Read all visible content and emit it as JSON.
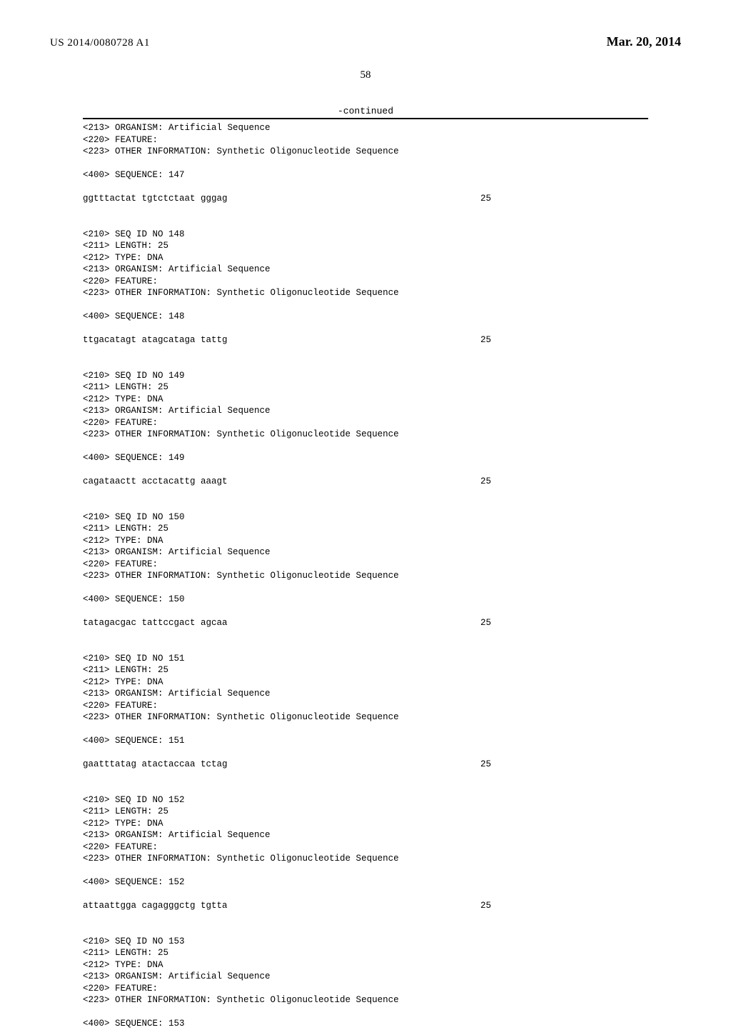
{
  "header": {
    "pub_number": "US 2014/0080728 A1",
    "pub_date": "Mar. 20, 2014"
  },
  "page_number": "58",
  "continued_label": "-continued",
  "top_lines": [
    "<213> ORGANISM: Artificial Sequence",
    "<220> FEATURE:",
    "<223> OTHER INFORMATION: Synthetic Oligonucleotide Sequence",
    "",
    "<400> SEQUENCE: 147",
    ""
  ],
  "top_seq": {
    "text": "ggtttactat tgtctctaat gggag",
    "len": "25"
  },
  "entries": [
    {
      "meta": [
        "<210> SEQ ID NO 148",
        "<211> LENGTH: 25",
        "<212> TYPE: DNA",
        "<213> ORGANISM: Artificial Sequence",
        "<220> FEATURE:",
        "<223> OTHER INFORMATION: Synthetic Oligonucleotide Sequence",
        "",
        "<400> SEQUENCE: 148",
        ""
      ],
      "seq": {
        "text": "ttgacatagt atagcataga tattg",
        "len": "25"
      }
    },
    {
      "meta": [
        "<210> SEQ ID NO 149",
        "<211> LENGTH: 25",
        "<212> TYPE: DNA",
        "<213> ORGANISM: Artificial Sequence",
        "<220> FEATURE:",
        "<223> OTHER INFORMATION: Synthetic Oligonucleotide Sequence",
        "",
        "<400> SEQUENCE: 149",
        ""
      ],
      "seq": {
        "text": "cagataactt acctacattg aaagt",
        "len": "25"
      }
    },
    {
      "meta": [
        "<210> SEQ ID NO 150",
        "<211> LENGTH: 25",
        "<212> TYPE: DNA",
        "<213> ORGANISM: Artificial Sequence",
        "<220> FEATURE:",
        "<223> OTHER INFORMATION: Synthetic Oligonucleotide Sequence",
        "",
        "<400> SEQUENCE: 150",
        ""
      ],
      "seq": {
        "text": "tatagacgac tattccgact agcaa",
        "len": "25"
      }
    },
    {
      "meta": [
        "<210> SEQ ID NO 151",
        "<211> LENGTH: 25",
        "<212> TYPE: DNA",
        "<213> ORGANISM: Artificial Sequence",
        "<220> FEATURE:",
        "<223> OTHER INFORMATION: Synthetic Oligonucleotide Sequence",
        "",
        "<400> SEQUENCE: 151",
        ""
      ],
      "seq": {
        "text": "gaatttatag atactaccaa tctag",
        "len": "25"
      }
    },
    {
      "meta": [
        "<210> SEQ ID NO 152",
        "<211> LENGTH: 25",
        "<212> TYPE: DNA",
        "<213> ORGANISM: Artificial Sequence",
        "<220> FEATURE:",
        "<223> OTHER INFORMATION: Synthetic Oligonucleotide Sequence",
        "",
        "<400> SEQUENCE: 152",
        ""
      ],
      "seq": {
        "text": "attaattgga cagagggctg tgtta",
        "len": "25"
      }
    },
    {
      "meta": [
        "<210> SEQ ID NO 153",
        "<211> LENGTH: 25",
        "<212> TYPE: DNA",
        "<213> ORGANISM: Artificial Sequence",
        "<220> FEATURE:",
        "<223> OTHER INFORMATION: Synthetic Oligonucleotide Sequence",
        "",
        "<400> SEQUENCE: 153"
      ],
      "seq": null
    }
  ]
}
